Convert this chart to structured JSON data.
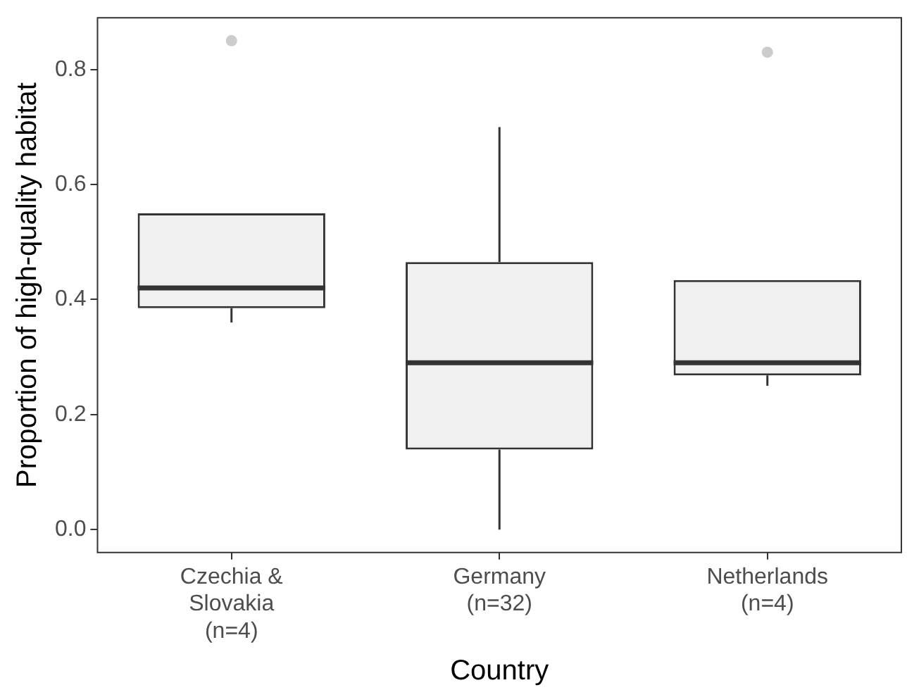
{
  "chart_data": {
    "type": "box",
    "xlabel": "Country",
    "ylabel": "Proportion of high-quality habitat",
    "categories": [
      "Czechia &\nSlovakia\n(n=4)",
      "Germany\n(n=32)",
      "Netherlands\n(n=4)"
    ],
    "boxes": [
      {
        "low": 0.36,
        "q1": 0.385,
        "median": 0.42,
        "q3": 0.55,
        "high": 0.55,
        "outliers": [
          0.85
        ]
      },
      {
        "low": 0.0,
        "q1": 0.139,
        "median": 0.29,
        "q3": 0.465,
        "high": 0.7
      },
      {
        "low": 0.25,
        "q1": 0.268,
        "median": 0.29,
        "q3": 0.434,
        "high": 0.434,
        "outliers": [
          0.83
        ]
      }
    ],
    "ylim": [
      -0.04,
      0.89
    ],
    "yticks": [
      {
        "value": 0,
        "label": "0.0"
      },
      0.2,
      0.4,
      0.6,
      0.8
    ],
    "grid": false,
    "legend": false
  }
}
